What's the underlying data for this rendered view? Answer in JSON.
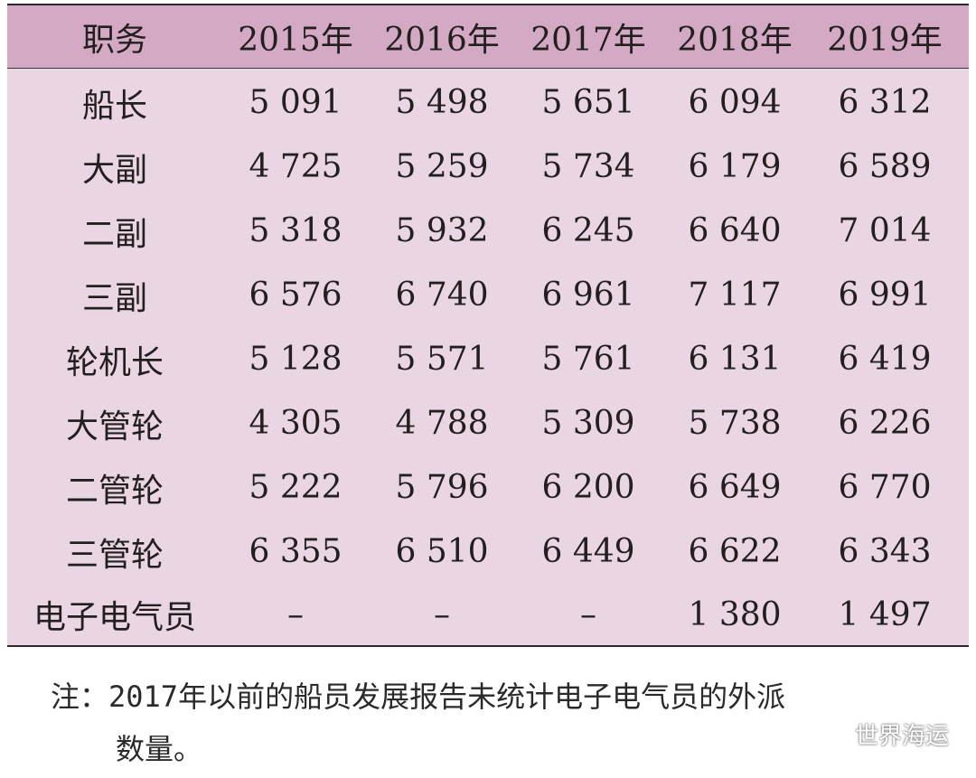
{
  "table": {
    "headers": [
      "职务",
      "2015年",
      "2016年",
      "2017年",
      "2018年",
      "2019年"
    ],
    "rows": [
      [
        "船长",
        "5 091",
        "5 498",
        "5 651",
        "6 094",
        "6 312"
      ],
      [
        "大副",
        "4 725",
        "5 259",
        "5 734",
        "6 179",
        "6 589"
      ],
      [
        "二副",
        "5 318",
        "5 932",
        "6 245",
        "6 640",
        "7 014"
      ],
      [
        "三副",
        "6 576",
        "6 740",
        "6 961",
        "7 117",
        "6 991"
      ],
      [
        "轮机长",
        "5 128",
        "5 571",
        "5 761",
        "6 131",
        "6 419"
      ],
      [
        "大管轮",
        "4 305",
        "4 788",
        "5 309",
        "5 738",
        "6 226"
      ],
      [
        "二管轮",
        "5 222",
        "5 796",
        "6 200",
        "6 649",
        "6 770"
      ],
      [
        "三管轮",
        "6 355",
        "6 510",
        "6 449",
        "6 622",
        "6 343"
      ],
      [
        "电子电气员",
        "–",
        "–",
        "–",
        "1 380",
        "1 497"
      ]
    ]
  },
  "note": {
    "line1": "注：2017年以前的船员发展报告未统计电子电气员的外派",
    "line2": "数量。"
  },
  "watermark": {
    "text": "世界海运",
    "icon": "wechat-icon"
  },
  "colors": {
    "header_bg": "#d4a9c4",
    "body_bg": "#ead6e3",
    "rule": "#2b2b2b"
  }
}
